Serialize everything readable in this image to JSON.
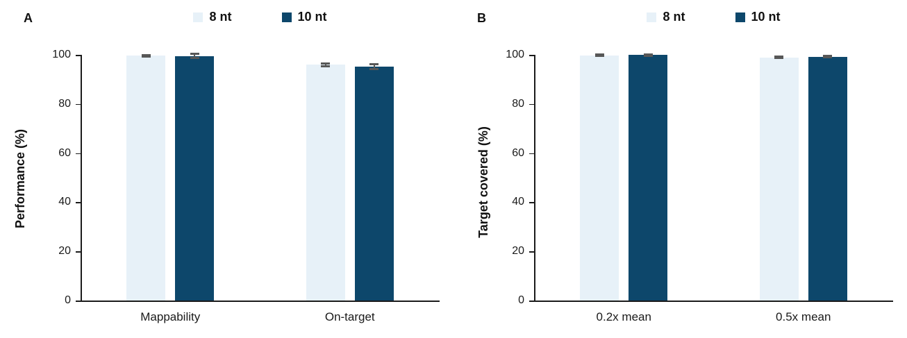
{
  "figure": {
    "background": "#ffffff",
    "text_color": "#1a1a1a",
    "axis_color": "#1a1a1a",
    "error_bar_color": "#575757"
  },
  "series_colors": {
    "8 nt": "#e7f1f8",
    "10 nt": "#0d476b"
  },
  "chart_data": [
    {
      "type": "bar",
      "panel_label": "A",
      "title": "",
      "xlabel": "",
      "ylabel": "Performance (%)",
      "categories": [
        "Mappability",
        "On-target"
      ],
      "series": [
        {
          "name": "8 nt",
          "color": "#e7f1f8",
          "values": [
            99.6,
            96.0
          ],
          "errors": [
            0.4,
            0.6
          ]
        },
        {
          "name": "10 nt",
          "color": "#0d476b",
          "values": [
            99.5,
            95.2
          ],
          "errors": [
            0.9,
            0.9
          ]
        }
      ],
      "ylim": [
        0,
        100
      ],
      "yticks": [
        0,
        20,
        40,
        60,
        80,
        100
      ],
      "grid": false,
      "legend_position": "top-center"
    },
    {
      "type": "bar",
      "panel_label": "B",
      "title": "",
      "xlabel": "",
      "ylabel": "Target covered (%)",
      "categories": [
        "0.2x mean",
        "0.5x mean"
      ],
      "series": [
        {
          "name": "8 nt",
          "color": "#e7f1f8",
          "values": [
            99.8,
            99.0
          ],
          "errors": [
            0.3,
            0.4
          ]
        },
        {
          "name": "10 nt",
          "color": "#0d476b",
          "values": [
            99.9,
            99.2
          ],
          "errors": [
            0.2,
            0.3
          ]
        }
      ],
      "ylim": [
        0,
        100
      ],
      "yticks": [
        0,
        20,
        40,
        60,
        80,
        100
      ],
      "grid": false,
      "legend_position": "top-center"
    }
  ]
}
